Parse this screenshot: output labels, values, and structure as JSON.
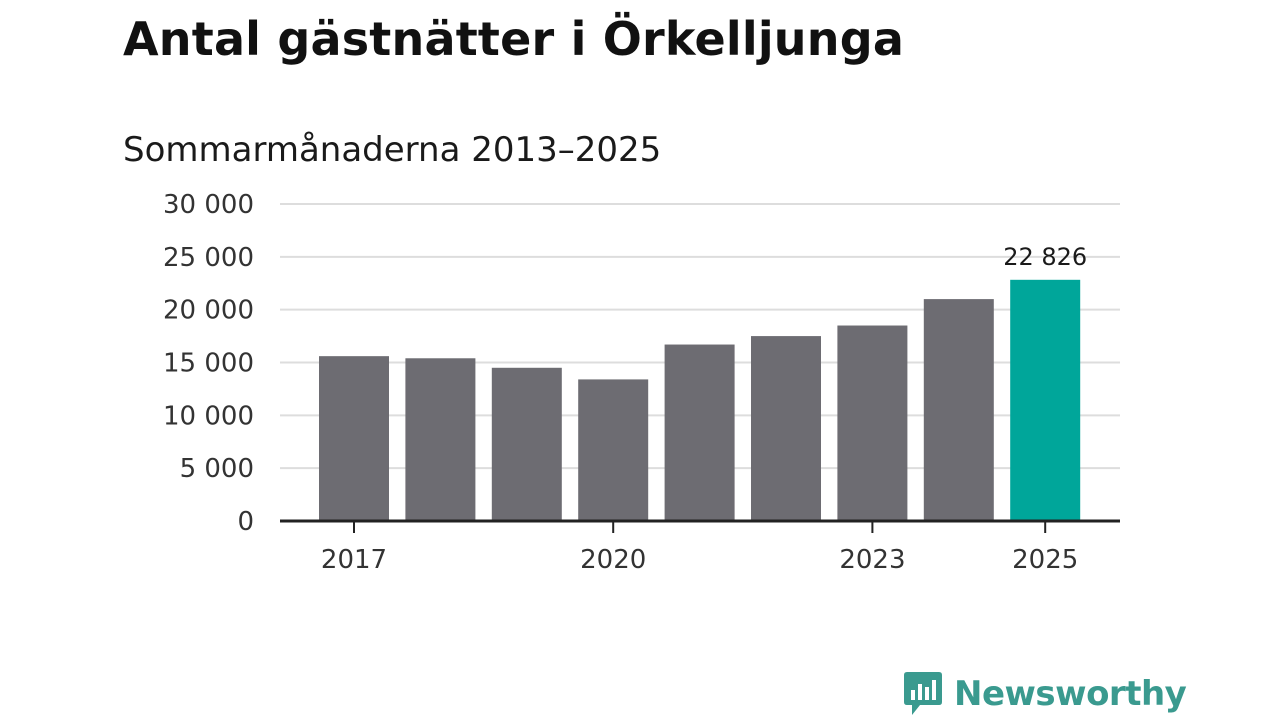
{
  "title": "Antal gästnätter i Örkelljunga",
  "subtitle": "Sommarmånaderna 2013–2025",
  "colors": {
    "bar": "#6d6c72",
    "highlight": "#00a69a",
    "grid": "#dddddd",
    "axis": "#222222",
    "brand": "#3a9a8f"
  },
  "brand": {
    "name": "Newsworthy",
    "icon": "bar-chart-speech-bubble-icon"
  },
  "chart_data": {
    "type": "bar",
    "title": "Antal gästnätter i Örkelljunga",
    "subtitle": "Sommarmånaderna 2013–2025",
    "categories": [
      "2017",
      "2018",
      "2019",
      "2020",
      "2021",
      "2022",
      "2023",
      "2024",
      "2025"
    ],
    "values": [
      15600,
      15400,
      14500,
      13400,
      16700,
      17500,
      18500,
      21000,
      22826
    ],
    "x_tick_labels": [
      "2017",
      "2020",
      "2023",
      "2025"
    ],
    "y_ticks": [
      0,
      5000,
      10000,
      15000,
      20000,
      25000,
      30000
    ],
    "y_tick_labels": [
      "0",
      "5 000",
      "10 000",
      "15 000",
      "20 000",
      "25 000",
      "30 000"
    ],
    "ylim": [
      0,
      30000
    ],
    "highlight_category": "2025",
    "annotation": {
      "category": "2025",
      "text": "22 826"
    },
    "grid": true,
    "legend": false
  }
}
